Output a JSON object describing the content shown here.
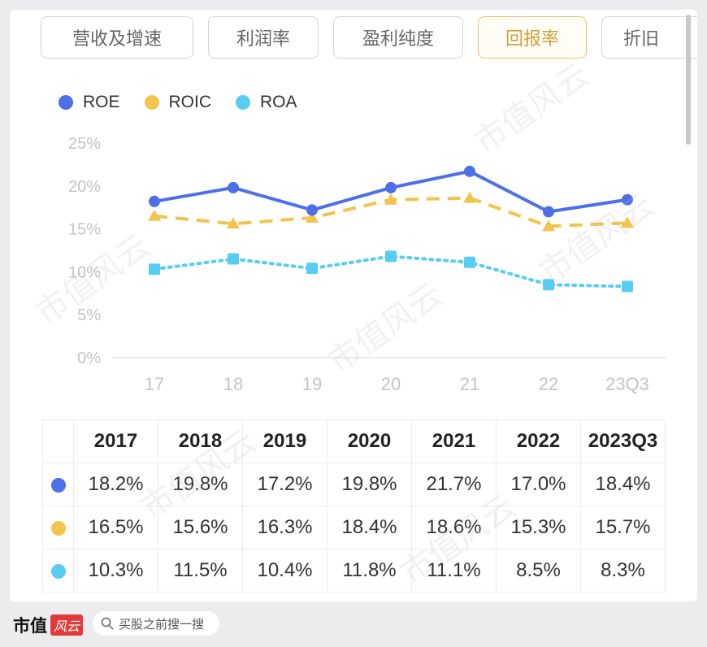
{
  "tabs": [
    {
      "label": "营收及增速",
      "active": false
    },
    {
      "label": "利润率",
      "active": false
    },
    {
      "label": "盈利纯度",
      "active": false
    },
    {
      "label": "回报率",
      "active": true
    },
    {
      "label": "折旧",
      "active": false
    }
  ],
  "colors": {
    "roe": "#4d6fe8",
    "roic": "#f2c44e",
    "roa": "#58cdf3"
  },
  "chart_data": {
    "type": "line",
    "categories": [
      "17",
      "18",
      "19",
      "20",
      "21",
      "22",
      "23Q3"
    ],
    "y_ticks": [
      "0%",
      "5%",
      "10%",
      "15%",
      "20%",
      "25%"
    ],
    "ylim": [
      0,
      25
    ],
    "series": [
      {
        "name": "ROE",
        "key": "roe",
        "style": "solid",
        "marker": "circle",
        "values": [
          18.2,
          19.8,
          17.2,
          19.8,
          21.7,
          17.0,
          18.4
        ]
      },
      {
        "name": "ROIC",
        "key": "roic",
        "style": "dashed",
        "marker": "triangle",
        "values": [
          16.5,
          15.6,
          16.3,
          18.4,
          18.6,
          15.3,
          15.7
        ]
      },
      {
        "name": "ROA",
        "key": "roa",
        "style": "dotted",
        "marker": "square",
        "values": [
          10.3,
          11.5,
          10.4,
          11.8,
          11.1,
          8.5,
          8.3
        ]
      }
    ],
    "legend_position": "top-left"
  },
  "table": {
    "headers": [
      "2017",
      "2018",
      "2019",
      "2020",
      "2021",
      "2022",
      "2023Q3"
    ],
    "rows": [
      {
        "key": "roe",
        "cells": [
          "18.2%",
          "19.8%",
          "17.2%",
          "19.8%",
          "21.7%",
          "17.0%",
          "18.4%"
        ]
      },
      {
        "key": "roic",
        "cells": [
          "16.5%",
          "15.6%",
          "16.3%",
          "18.4%",
          "18.6%",
          "15.3%",
          "15.7%"
        ]
      },
      {
        "key": "roa",
        "cells": [
          "10.3%",
          "11.5%",
          "10.4%",
          "11.8%",
          "11.1%",
          "8.5%",
          "8.3%"
        ]
      }
    ]
  },
  "watermark": "市值风云",
  "footer": {
    "brand": "市值",
    "brand_badge": "风云",
    "search_placeholder": "买股之前搜一搜",
    "search_icon": "search-icon"
  }
}
